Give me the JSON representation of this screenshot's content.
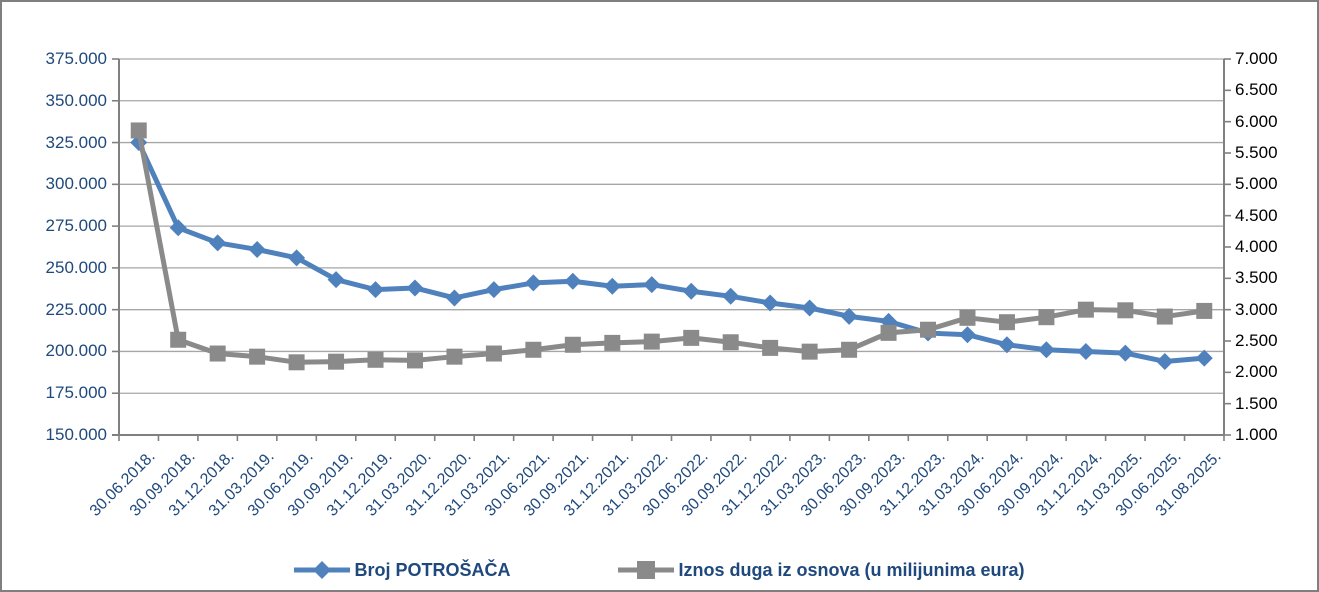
{
  "figure": {
    "background": "#FFFFFF",
    "border_color": "#7F7F7F"
  },
  "chart_data": {
    "type": "line",
    "title": "",
    "xlabel": "",
    "ylabel_left": "",
    "ylabel_right": "",
    "grid": true,
    "legend_position": "bottom",
    "x_categories": [
      "30.06.2018.",
      "30.09.2018.",
      "31.12.2018.",
      "31.03.2019.",
      "30.06.2019.",
      "30.09.2019.",
      "31.12.2019.",
      "31.03.2020.",
      "31.12.2020.",
      "31.03.2021.",
      "30.06.2021.",
      "30.09.2021.",
      "31.12.2021.",
      "31.03.2022.",
      "30.06.2022.",
      "30.09.2022.",
      "31.12.2022.",
      "31.03.2023.",
      "30.06.2023.",
      "30.09.2023.",
      "31.12.2023.",
      "31.03.2024.",
      "30.06.2024.",
      "30.09.2024.",
      "31.12.2024.",
      "31.03.2025.",
      "30.06.2025.",
      "31.08.2025."
    ],
    "series": [
      {
        "name": "Broj POTROŠAČA",
        "axis": "left",
        "color": "#4F81BD",
        "marker": "diamond",
        "values": [
          325000,
          274000,
          265000,
          261000,
          256000,
          243000,
          237000,
          238000,
          232000,
          237000,
          241000,
          242000,
          239000,
          240000,
          236000,
          233000,
          229000,
          226000,
          221000,
          218000,
          211000,
          210000,
          204000,
          201000,
          200000,
          199000,
          194000,
          196000
        ]
      },
      {
        "name": "Iznos duga iz osnova (u milijunima eura)",
        "axis": "right",
        "color": "#8A8A8A",
        "marker": "square",
        "values": [
          5860,
          2520,
          2300,
          2250,
          2160,
          2170,
          2200,
          2190,
          2250,
          2300,
          2360,
          2440,
          2470,
          2490,
          2550,
          2480,
          2390,
          2330,
          2360,
          2630,
          2680,
          2870,
          2800,
          2880,
          3000,
          2990,
          2890,
          2980
        ]
      }
    ],
    "left_axis": {
      "min": 150000,
      "max": 375000,
      "step": 25000,
      "tick_labels": [
        "375.000",
        "350.000",
        "325.000",
        "300.000",
        "275.000",
        "250.000",
        "225.000",
        "200.000",
        "175.000",
        "150.000"
      ],
      "text_color": "#1F497D"
    },
    "right_axis": {
      "min": 1000,
      "max": 7000,
      "step": 500,
      "tick_labels": [
        "7.000",
        "6.500",
        "6.000",
        "5.500",
        "5.000",
        "4.500",
        "4.000",
        "3.500",
        "3.000",
        "2.500",
        "2.000",
        "1.500",
        "1.000"
      ],
      "text_color": "#000000"
    },
    "gridline_color": "#A6A6A6",
    "axis_line_color": "#808080"
  },
  "legend": {
    "items": [
      {
        "label": "Broj POTROŠAČA",
        "color": "#4F81BD",
        "marker": "diamond"
      },
      {
        "label": "Iznos duga iz osnova (u milijunima eura)",
        "color": "#8A8A8A",
        "marker": "square"
      }
    ]
  }
}
